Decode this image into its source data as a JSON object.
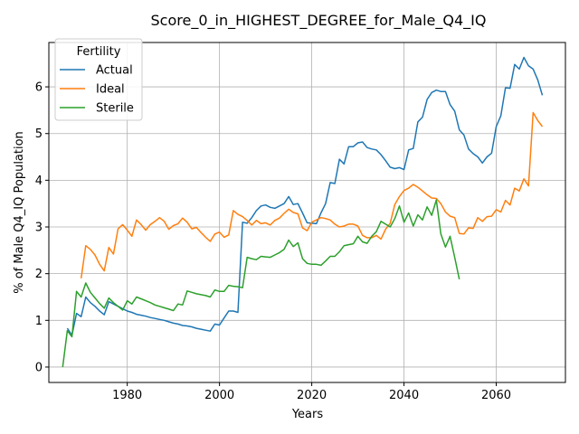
{
  "chart_data": {
    "type": "line",
    "title": "Score_0_in_HIGHEST_DEGREE_for_Male_Q4_IQ",
    "xlabel": "Years",
    "ylabel": "% of Male Q4_IQ Population",
    "xlim": [
      1963,
      2075
    ],
    "ylim": [
      -0.33,
      6.95
    ],
    "xticks": [
      1980,
      2000,
      2020,
      2040,
      2060
    ],
    "yticks": [
      0,
      1,
      2,
      3,
      4,
      5,
      6
    ],
    "grid": true,
    "legend": {
      "title": "Fertility",
      "placement": "top-left"
    },
    "series": [
      {
        "name": "Actual",
        "color": "#1f77b4",
        "x": [
          1967,
          1968,
          1969,
          1970,
          1971,
          1972,
          1973,
          1974,
          1975,
          1976,
          1977,
          1978,
          1979,
          1980,
          1981,
          1982,
          1983,
          1984,
          1985,
          1986,
          1987,
          1988,
          1989,
          1990,
          1991,
          1992,
          1993,
          1994,
          1995,
          1996,
          1997,
          1998,
          1999,
          2000,
          2001,
          2002,
          2003,
          2004,
          2005,
          2006,
          2007,
          2008,
          2009,
          2010,
          2011,
          2012,
          2013,
          2014,
          2015,
          2016,
          2017,
          2018,
          2019,
          2020,
          2021,
          2022,
          2023,
          2024,
          2025,
          2026,
          2027,
          2028,
          2029,
          2030,
          2031,
          2032,
          2033,
          2034,
          2035,
          2036,
          2037,
          2038,
          2039,
          2040,
          2041,
          2042,
          2043,
          2044,
          2045,
          2046,
          2047,
          2048,
          2049,
          2050,
          2051,
          2052,
          2053,
          2054,
          2055,
          2056,
          2057,
          2058,
          2059,
          2060,
          2061,
          2062,
          2063,
          2064,
          2065,
          2066,
          2067,
          2068,
          2069,
          2070
        ],
        "values": [
          0.83,
          0.68,
          1.15,
          1.08,
          1.5,
          1.38,
          1.3,
          1.2,
          1.12,
          1.4,
          1.35,
          1.3,
          1.25,
          1.2,
          1.17,
          1.13,
          1.11,
          1.09,
          1.06,
          1.04,
          1.02,
          1.0,
          0.97,
          0.94,
          0.92,
          0.89,
          0.88,
          0.86,
          0.83,
          0.81,
          0.79,
          0.77,
          0.92,
          0.9,
          1.05,
          1.2,
          1.2,
          1.17,
          3.1,
          3.08,
          3.2,
          3.35,
          3.45,
          3.47,
          3.42,
          3.4,
          3.45,
          3.5,
          3.65,
          3.48,
          3.5,
          3.3,
          3.09,
          3.08,
          3.07,
          3.3,
          3.5,
          3.95,
          3.93,
          4.45,
          4.35,
          4.72,
          4.72,
          4.8,
          4.82,
          4.7,
          4.67,
          4.65,
          4.55,
          4.42,
          4.28,
          4.25,
          4.27,
          4.23,
          4.65,
          4.68,
          5.25,
          5.35,
          5.73,
          5.88,
          5.93,
          5.9,
          5.9,
          5.62,
          5.48,
          5.08,
          4.97,
          4.67,
          4.57,
          4.5,
          4.37,
          4.5,
          4.58,
          5.15,
          5.38,
          5.98,
          5.97,
          6.48,
          6.38,
          6.63,
          6.45,
          6.38,
          6.15,
          5.82
        ]
      },
      {
        "name": "Ideal",
        "color": "#ff7f0e",
        "x": [
          1970,
          1971,
          1972,
          1973,
          1974,
          1975,
          1976,
          1977,
          1978,
          1979,
          1980,
          1981,
          1982,
          1983,
          1984,
          1985,
          1986,
          1987,
          1988,
          1989,
          1990,
          1991,
          1992,
          1993,
          1994,
          1995,
          1996,
          1997,
          1998,
          1999,
          2000,
          2001,
          2002,
          2003,
          2004,
          2005,
          2006,
          2007,
          2008,
          2009,
          2010,
          2011,
          2012,
          2013,
          2014,
          2015,
          2016,
          2017,
          2018,
          2019,
          2020,
          2021,
          2022,
          2023,
          2024,
          2025,
          2026,
          2027,
          2028,
          2029,
          2030,
          2031,
          2032,
          2033,
          2034,
          2035,
          2036,
          2037,
          2038,
          2039,
          2040,
          2041,
          2042,
          2043,
          2044,
          2045,
          2046,
          2047,
          2048,
          2049,
          2050,
          2051,
          2052,
          2053,
          2054,
          2055,
          2056,
          2057,
          2058,
          2059,
          2060,
          2061,
          2062,
          2063,
          2064,
          2065,
          2066,
          2067,
          2068,
          2069,
          2070
        ],
        "values": [
          1.9,
          2.6,
          2.52,
          2.4,
          2.2,
          2.06,
          2.56,
          2.42,
          2.96,
          3.05,
          2.93,
          2.8,
          3.15,
          3.05,
          2.93,
          3.05,
          3.12,
          3.2,
          3.12,
          2.95,
          3.03,
          3.07,
          3.19,
          3.1,
          2.96,
          2.99,
          2.88,
          2.78,
          2.69,
          2.85,
          2.89,
          2.78,
          2.83,
          3.35,
          3.27,
          3.22,
          3.14,
          3.04,
          3.14,
          3.07,
          3.09,
          3.04,
          3.14,
          3.19,
          3.29,
          3.38,
          3.31,
          3.28,
          2.98,
          2.92,
          3.1,
          3.15,
          3.2,
          3.18,
          3.15,
          3.06,
          3.0,
          3.02,
          3.06,
          3.06,
          3.02,
          2.82,
          2.77,
          2.77,
          2.82,
          2.74,
          2.95,
          3.08,
          3.48,
          3.65,
          3.78,
          3.83,
          3.91,
          3.85,
          3.77,
          3.69,
          3.62,
          3.61,
          3.5,
          3.32,
          3.23,
          3.2,
          2.86,
          2.85,
          2.98,
          2.97,
          3.2,
          3.12,
          3.22,
          3.23,
          3.37,
          3.32,
          3.57,
          3.47,
          3.83,
          3.77,
          4.03,
          3.88,
          5.45,
          5.28,
          5.15
        ]
      },
      {
        "name": "Sterile",
        "color": "#2ca02c",
        "x": [
          1966,
          1967,
          1968,
          1969,
          1970,
          1971,
          1972,
          1973,
          1974,
          1975,
          1976,
          1977,
          1978,
          1979,
          1980,
          1981,
          1982,
          1983,
          1984,
          1985,
          1986,
          1987,
          1988,
          1989,
          1990,
          1991,
          1992,
          1993,
          1994,
          1995,
          1996,
          1997,
          1998,
          1999,
          2000,
          2001,
          2002,
          2003,
          2004,
          2005,
          2006,
          2007,
          2008,
          2009,
          2010,
          2011,
          2012,
          2013,
          2014,
          2015,
          2016,
          2017,
          2018,
          2019,
          2020,
          2021,
          2022,
          2023,
          2024,
          2025,
          2026,
          2027,
          2028,
          2029,
          2030,
          2031,
          2032,
          2033,
          2034,
          2035,
          2036,
          2037,
          2038,
          2039,
          2040,
          2041,
          2042,
          2043,
          2044,
          2045,
          2046,
          2047,
          2048,
          2049,
          2050,
          2051,
          2052
        ],
        "values": [
          0.0,
          0.78,
          0.65,
          1.62,
          1.5,
          1.8,
          1.6,
          1.48,
          1.36,
          1.26,
          1.48,
          1.38,
          1.3,
          1.22,
          1.42,
          1.35,
          1.5,
          1.46,
          1.42,
          1.38,
          1.33,
          1.3,
          1.27,
          1.24,
          1.21,
          1.35,
          1.33,
          1.63,
          1.6,
          1.57,
          1.55,
          1.53,
          1.5,
          1.65,
          1.62,
          1.62,
          1.75,
          1.73,
          1.72,
          1.7,
          2.35,
          2.32,
          2.3,
          2.37,
          2.36,
          2.35,
          2.4,
          2.45,
          2.52,
          2.72,
          2.58,
          2.66,
          2.32,
          2.22,
          2.2,
          2.2,
          2.18,
          2.27,
          2.37,
          2.37,
          2.47,
          2.6,
          2.62,
          2.64,
          2.8,
          2.68,
          2.65,
          2.8,
          2.9,
          3.12,
          3.06,
          3.0,
          3.18,
          3.45,
          3.1,
          3.3,
          3.02,
          3.26,
          3.15,
          3.43,
          3.25,
          3.58,
          2.85,
          2.57,
          2.8,
          2.35,
          1.88
        ]
      }
    ]
  }
}
